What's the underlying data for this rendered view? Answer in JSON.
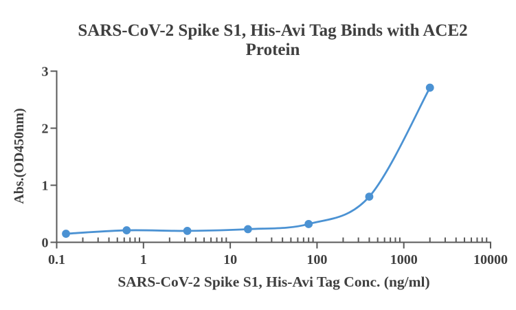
{
  "chart_data": {
    "type": "line",
    "title": "SARS-CoV-2 Spike S1, His-Avi Tag Binds with ACE2 Protein",
    "xlabel": "SARS-CoV-2 Spike S1, His-Avi Tag Conc. (ng/ml)",
    "ylabel": "Abs.(OD450nm)",
    "x_scale": "log",
    "xlim": [
      0.1,
      10000
    ],
    "ylim": [
      0,
      3
    ],
    "x_tick_labels": [
      "0.1",
      "1",
      "10",
      "100",
      "1000",
      "10000"
    ],
    "x_tick_values": [
      0.1,
      1,
      10,
      100,
      1000,
      10000
    ],
    "x_minor_ticks": true,
    "y_tick_labels": [
      "0",
      "1",
      "2",
      "3"
    ],
    "y_tick_values": [
      0,
      1,
      2,
      3
    ],
    "grid": false,
    "legend": false,
    "series": [
      {
        "x": [
          0.128,
          0.64,
          3.2,
          16,
          80,
          400,
          2000
        ],
        "y": [
          0.15,
          0.21,
          0.2,
          0.23,
          0.32,
          0.8,
          2.71
        ],
        "marker": "circle",
        "line_style": "smooth"
      }
    ]
  },
  "colors": {
    "series": "#4b92d3",
    "axis": "#595959",
    "text": "#3f3f3f",
    "background": "#ffffff"
  }
}
